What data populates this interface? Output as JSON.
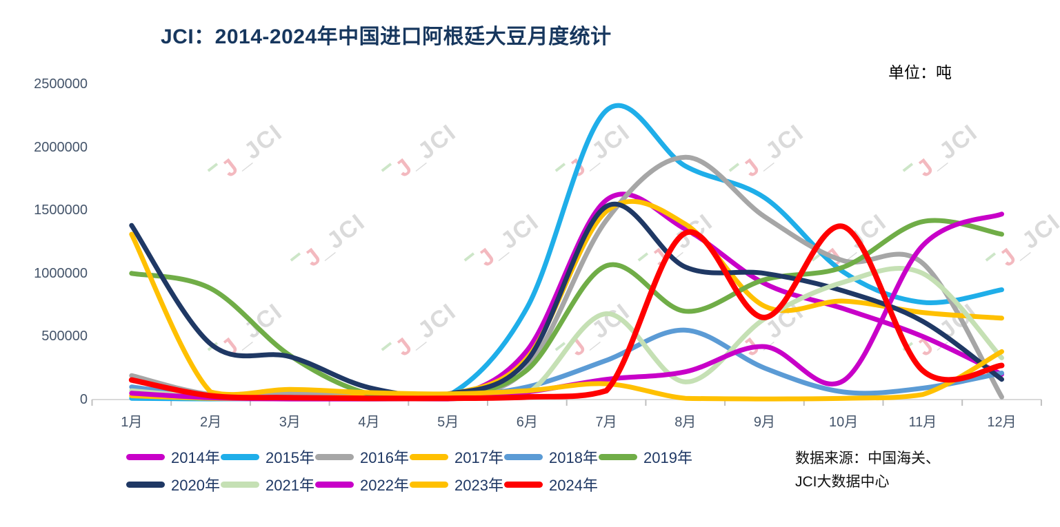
{
  "page": {
    "title": "JCI：2014-2024年中国进口阿根廷大豆月度统计",
    "unit_label": "单位：吨",
    "source_line1": "数据来源：中国海关、",
    "source_line2": "JCI大数据中心"
  },
  "watermark": {
    "j": "J",
    "label": "JCI"
  },
  "chart_data": {
    "type": "line",
    "smooth": true,
    "grid": false,
    "legend_position": "bottom",
    "title": "JCI：2014-2024年中国进口阿根廷大豆月度统计",
    "unit": "吨",
    "categories": [
      "1月",
      "2月",
      "3月",
      "4月",
      "5月",
      "6月",
      "7月",
      "8月",
      "9月",
      "10月",
      "11月",
      "12月"
    ],
    "y_axis": {
      "min": 0,
      "max": 2500000,
      "step": 500000,
      "tick_labels": [
        "0",
        "500000",
        "1000000",
        "1500000",
        "2000000",
        "2500000"
      ]
    },
    "series": [
      {
        "name": "2014年",
        "color": "#C800C8",
        "line_width": 7,
        "values": [
          30000,
          10000,
          5000,
          5000,
          10000,
          390000,
          1580000,
          1350000,
          920000,
          720000,
          500000,
          200000
        ]
      },
      {
        "name": "2015年",
        "color": "#1FAEE9",
        "line_width": 7,
        "values": [
          10000,
          5000,
          10000,
          20000,
          30000,
          730000,
          2290000,
          1850000,
          1600000,
          1010000,
          770000,
          870000
        ]
      },
      {
        "name": "2016年",
        "color": "#A6A6A6",
        "line_width": 7,
        "values": [
          190000,
          40000,
          50000,
          30000,
          35000,
          250000,
          1420000,
          1920000,
          1450000,
          1100000,
          1080000,
          20000
        ]
      },
      {
        "name": "2017年",
        "color": "#FFC000",
        "line_width": 7,
        "values": [
          30000,
          10000,
          10000,
          25000,
          40000,
          330000,
          1490000,
          1390000,
          740000,
          780000,
          690000,
          645000
        ]
      },
      {
        "name": "2018年",
        "color": "#5B9BD5",
        "line_width": 7,
        "values": [
          100000,
          25000,
          10000,
          10000,
          20000,
          100000,
          310000,
          550000,
          250000,
          60000,
          90000,
          210000
        ]
      },
      {
        "name": "2019年",
        "color": "#70AD47",
        "line_width": 7,
        "values": [
          1000000,
          880000,
          350000,
          45000,
          25000,
          235000,
          1060000,
          700000,
          950000,
          1050000,
          1410000,
          1310000
        ]
      },
      {
        "name": "2020年",
        "color": "#1F3864",
        "line_width": 7,
        "values": [
          1380000,
          440000,
          340000,
          95000,
          45000,
          310000,
          1530000,
          1050000,
          1000000,
          860000,
          620000,
          160000
        ]
      },
      {
        "name": "2021年",
        "color": "#C5E0B4",
        "line_width": 7,
        "values": [
          70000,
          20000,
          10000,
          5000,
          5000,
          50000,
          680000,
          140000,
          640000,
          930000,
          1000000,
          330000
        ]
      },
      {
        "name": "2022年",
        "color": "#C800C8",
        "line_width": 7,
        "values": [
          50000,
          15000,
          5000,
          5000,
          5000,
          60000,
          160000,
          220000,
          420000,
          150000,
          1220000,
          1470000
        ]
      },
      {
        "name": "2023年",
        "color": "#FFC000",
        "line_width": 7,
        "values": [
          1310000,
          60000,
          80000,
          55000,
          45000,
          70000,
          125000,
          10000,
          5000,
          10000,
          40000,
          380000
        ]
      },
      {
        "name": "2024年",
        "color": "#FF0000",
        "line_width": 8,
        "values": [
          155000,
          30000,
          15000,
          10000,
          10000,
          20000,
          70000,
          1320000,
          650000,
          1370000,
          230000,
          270000
        ]
      }
    ]
  }
}
